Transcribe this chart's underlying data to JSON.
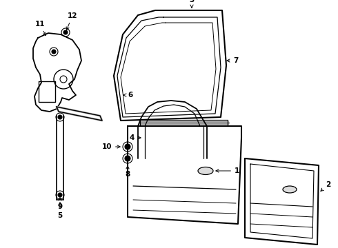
{
  "background_color": "#ffffff",
  "line_color": "#000000",
  "lw": 1.0,
  "figsize": [
    4.9,
    3.6
  ],
  "dpi": 100,
  "label_fontsize": 7.5,
  "label_fontweight": "bold"
}
